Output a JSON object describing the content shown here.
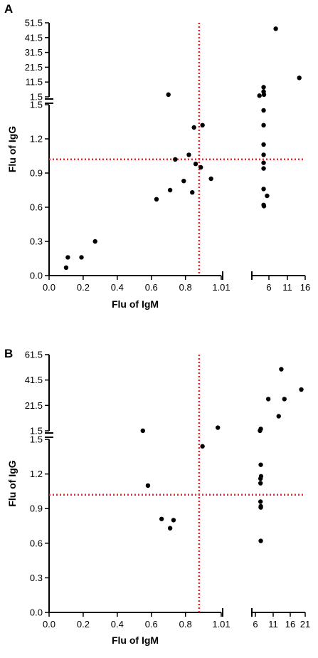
{
  "chart_data": [
    {
      "type": "scatter",
      "panel_label": "A",
      "xlabel": "Flu of IgM",
      "ylabel": "Flu of IgG",
      "x_axis": {
        "broken": true,
        "lower_range": [
          0.0,
          1.01
        ],
        "upper_range": [
          1.01,
          16
        ],
        "lower_ticks": [
          "0.0",
          "0.2",
          "0.4",
          "0.6",
          "0.8",
          "1.01"
        ],
        "upper_ticks": [
          "6",
          "11",
          "16"
        ]
      },
      "y_axis": {
        "broken": true,
        "lower_range": [
          0.0,
          1.5
        ],
        "upper_range": [
          1.5,
          51.5
        ],
        "lower_ticks": [
          "0.0",
          "0.3",
          "0.6",
          "0.9",
          "1.2",
          "1.5"
        ],
        "upper_ticks": [
          "1.5",
          "11.5",
          "21.5",
          "31.5",
          "41.5",
          "51.5"
        ]
      },
      "reference_lines": {
        "x": 0.88,
        "y": 1.02,
        "color": "#e8262a",
        "style": "dotted"
      },
      "points": [
        {
          "x": 0.1,
          "y": 0.07
        },
        {
          "x": 0.11,
          "y": 0.16
        },
        {
          "x": 0.19,
          "y": 0.16
        },
        {
          "x": 0.27,
          "y": 0.3
        },
        {
          "x": 0.63,
          "y": 0.67
        },
        {
          "x": 0.71,
          "y": 0.75
        },
        {
          "x": 0.74,
          "y": 1.02
        },
        {
          "x": 0.79,
          "y": 0.83
        },
        {
          "x": 0.82,
          "y": 1.06
        },
        {
          "x": 0.84,
          "y": 0.73
        },
        {
          "x": 0.85,
          "y": 1.3
        },
        {
          "x": 0.86,
          "y": 0.98
        },
        {
          "x": 0.89,
          "y": 0.95
        },
        {
          "x": 0.9,
          "y": 1.32
        },
        {
          "x": 0.95,
          "y": 0.85
        },
        {
          "x": 0.7,
          "y": 3.0
        },
        {
          "x": 2.8,
          "y": 2.3
        },
        {
          "x": 4.0,
          "y": 1.32
        },
        {
          "x": 4.0,
          "y": 1.45
        },
        {
          "x": 4.0,
          "y": 1.15
        },
        {
          "x": 4.0,
          "y": 1.06
        },
        {
          "x": 4.0,
          "y": 0.99
        },
        {
          "x": 4.0,
          "y": 0.94
        },
        {
          "x": 4.0,
          "y": 0.76
        },
        {
          "x": 4.0,
          "y": 0.62
        },
        {
          "x": 4.1,
          "y": 0.61
        },
        {
          "x": 5.0,
          "y": 0.7
        },
        {
          "x": 4.0,
          "y": 8.0
        },
        {
          "x": 4.0,
          "y": 5.0
        },
        {
          "x": 4.1,
          "y": 3.0
        },
        {
          "x": 7.5,
          "y": 47.5
        },
        {
          "x": 14.3,
          "y": 14.3
        }
      ]
    },
    {
      "type": "scatter",
      "panel_label": "B",
      "xlabel": "Flu of IgM",
      "ylabel": "Flu of IgG",
      "x_axis": {
        "broken": true,
        "lower_range": [
          0.0,
          1.01
        ],
        "upper_range": [
          1.01,
          21
        ],
        "lower_ticks": [
          "0.0",
          "0.2",
          "0.4",
          "0.6",
          "0.8",
          "1.01"
        ],
        "upper_ticks": [
          "6",
          "11",
          "16",
          "21"
        ]
      },
      "y_axis": {
        "broken": true,
        "lower_range": [
          0.0,
          1.5
        ],
        "upper_range": [
          1.5,
          61.5
        ],
        "lower_ticks": [
          "0.0",
          "0.3",
          "0.6",
          "0.9",
          "1.2",
          "1.5"
        ],
        "upper_ticks": [
          "1.5",
          "21.5",
          "41.5",
          "61.5"
        ]
      },
      "reference_lines": {
        "x": 0.88,
        "y": 1.02,
        "color": "#e8262a",
        "style": "dotted"
      },
      "points": [
        {
          "x": 0.55,
          "y": 1.6
        },
        {
          "x": 0.58,
          "y": 1.1
        },
        {
          "x": 0.66,
          "y": 0.81
        },
        {
          "x": 0.71,
          "y": 0.73
        },
        {
          "x": 0.73,
          "y": 0.8
        },
        {
          "x": 0.9,
          "y": 1.44
        },
        {
          "x": 0.99,
          "y": 4.0
        },
        {
          "x": 3.6,
          "y": 1.6
        },
        {
          "x": 3.9,
          "y": 3.0
        },
        {
          "x": 3.9,
          "y": 1.28
        },
        {
          "x": 4.0,
          "y": 1.18
        },
        {
          "x": 3.8,
          "y": 1.16
        },
        {
          "x": 3.8,
          "y": 1.12
        },
        {
          "x": 3.8,
          "y": 0.96
        },
        {
          "x": 3.9,
          "y": 0.92
        },
        {
          "x": 3.9,
          "y": 0.91
        },
        {
          "x": 3.9,
          "y": 0.62
        },
        {
          "x": 6.8,
          "y": 26.5
        },
        {
          "x": 10.8,
          "y": 13.0
        },
        {
          "x": 11.8,
          "y": 50.0
        },
        {
          "x": 13.0,
          "y": 26.5
        },
        {
          "x": 19.5,
          "y": 34.0
        }
      ]
    }
  ]
}
